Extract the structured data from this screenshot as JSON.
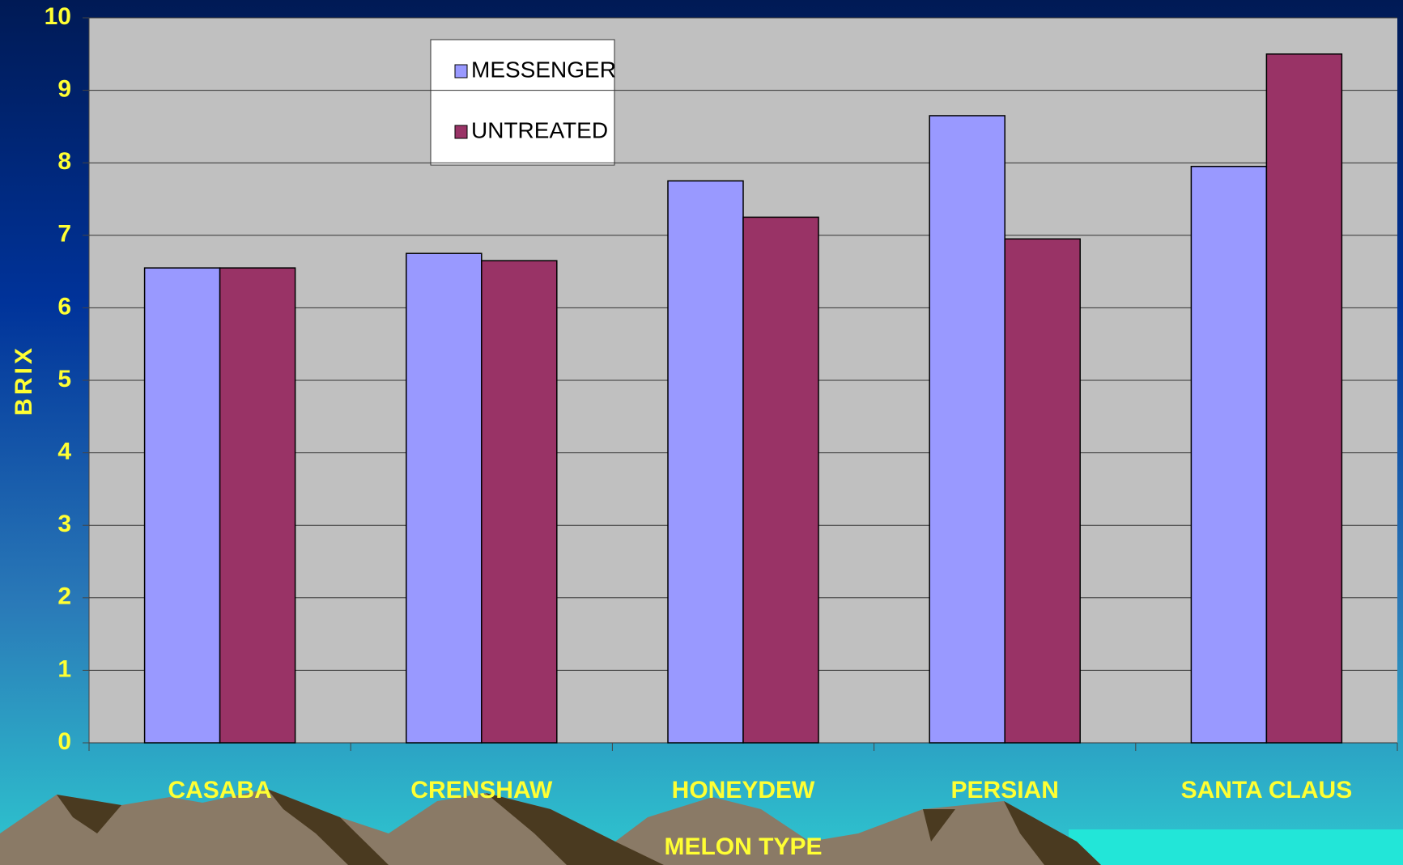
{
  "chart_data": {
    "type": "bar",
    "x_label": "MELON TYPE",
    "y_label": "BRIX",
    "categories": [
      "CASABA",
      "CRENSHAW",
      "HONEYDEW",
      "PERSIAN",
      "SANTA CLAUS"
    ],
    "series": [
      {
        "name": "MESSENGER",
        "color": "#9999ff",
        "values": [
          6.55,
          6.75,
          7.75,
          8.65,
          7.95
        ]
      },
      {
        "name": "UNTREATED",
        "color": "#993366",
        "values": [
          6.55,
          6.65,
          7.25,
          6.95,
          9.5
        ]
      }
    ],
    "ylim": [
      0,
      10
    ],
    "yticks": [
      0,
      1,
      2,
      3,
      4,
      5,
      6,
      7,
      8,
      9,
      10
    ],
    "grid": true
  }
}
